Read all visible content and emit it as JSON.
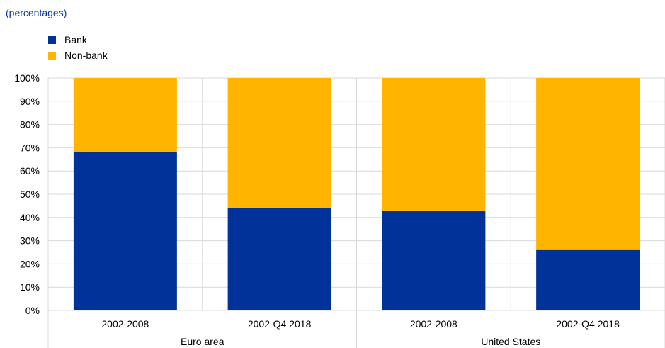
{
  "subtitle": "(percentages)",
  "colors": {
    "bank": "#003299",
    "nonbank": "#ffb400",
    "grid": "#d9d9d9"
  },
  "chart_data": {
    "type": "bar",
    "stacked": true,
    "title": "",
    "subtitle": "(percentages)",
    "xlabel": "",
    "ylabel": "",
    "ylim": [
      0,
      100
    ],
    "yticks": [
      "0%",
      "10%",
      "20%",
      "30%",
      "40%",
      "50%",
      "60%",
      "70%",
      "80%",
      "90%",
      "100%"
    ],
    "grid": true,
    "legend_position": "top-left",
    "categories": [
      "2002-2008",
      "2002-Q4 2018",
      "2002-2008",
      "2002-Q4 2018"
    ],
    "groups": [
      {
        "label": "Euro area",
        "categories": [
          "2002-2008",
          "2002-Q4 2018"
        ]
      },
      {
        "label": "United States",
        "categories": [
          "2002-2008",
          "2002-Q4 2018"
        ]
      }
    ],
    "series": [
      {
        "name": "Bank",
        "color": "#003299",
        "values": [
          68,
          44,
          43,
          26
        ]
      },
      {
        "name": "Non-bank",
        "color": "#ffb400",
        "values": [
          32,
          56,
          57,
          74
        ]
      }
    ]
  }
}
